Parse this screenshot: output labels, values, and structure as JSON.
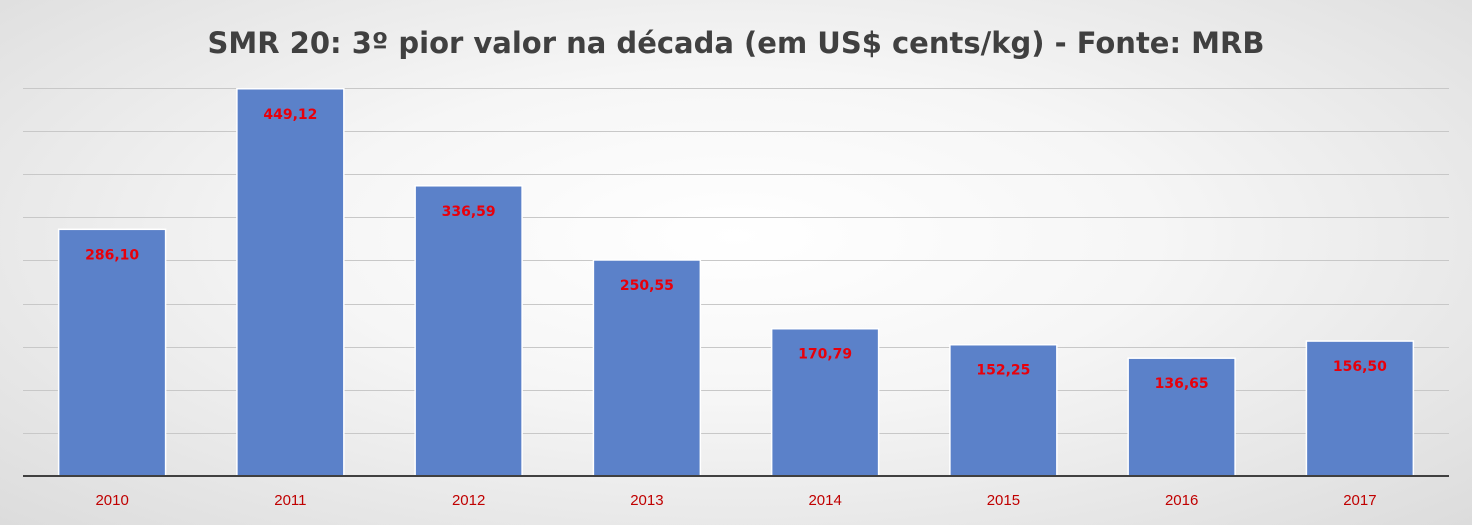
{
  "chart_data": {
    "type": "bar",
    "title": "SMR 20: 3º pior valor na década (em US$ cents/kg) - Fonte: MRB",
    "xlabel": "",
    "ylabel": "",
    "categories": [
      "2010",
      "2011",
      "2012",
      "2013",
      "2014",
      "2015",
      "2016",
      "2017"
    ],
    "values": [
      286.1,
      449.12,
      336.59,
      250.55,
      170.79,
      152.25,
      136.65,
      156.5
    ],
    "value_labels": [
      "286,10",
      "449,12",
      "336,59",
      "250,55",
      "170,79",
      "152,25",
      "136,65",
      "156,50"
    ],
    "ylim": [
      0,
      450
    ],
    "y_grid_step": 50,
    "y_tick_labels_shown": false,
    "grid": true,
    "legend": "none",
    "colors": {
      "bar": "#5b81c9",
      "data_label": "#e8000b",
      "tick_label": "#c00000",
      "title": "#404040",
      "grid": "#c8c8c8",
      "axis": "#404040"
    }
  }
}
